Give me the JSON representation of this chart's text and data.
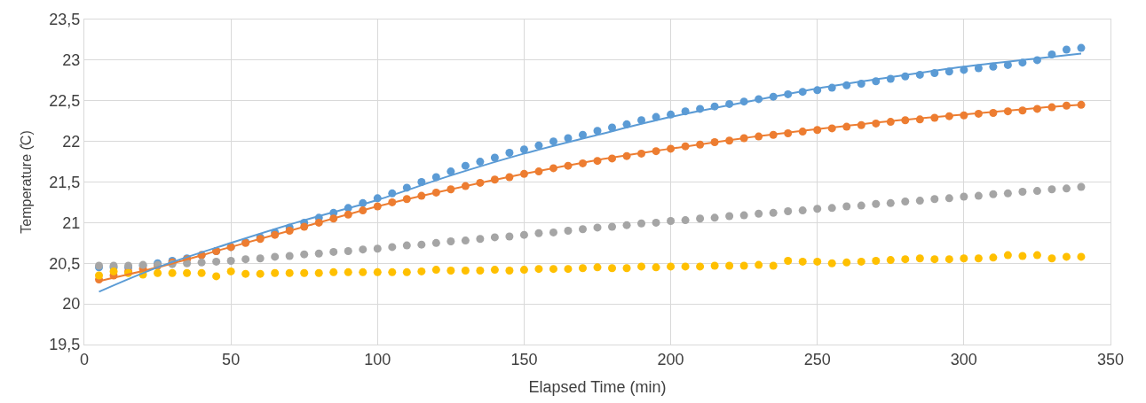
{
  "chart_data": {
    "type": "scatter",
    "xlabel": "Elapsed Time (min)",
    "ylabel": "Temperature (̊C)",
    "x": [
      5,
      10,
      15,
      20,
      25,
      30,
      35,
      40,
      45,
      50,
      55,
      60,
      65,
      70,
      75,
      80,
      85,
      90,
      95,
      100,
      105,
      110,
      115,
      120,
      125,
      130,
      135,
      140,
      145,
      150,
      155,
      160,
      165,
      170,
      175,
      180,
      185,
      190,
      195,
      200,
      205,
      210,
      215,
      220,
      225,
      230,
      235,
      240,
      245,
      250,
      255,
      260,
      265,
      270,
      275,
      280,
      285,
      290,
      295,
      300,
      305,
      310,
      315,
      320,
      325,
      330,
      335,
      340
    ],
    "series": [
      {
        "marker": "circle",
        "color": "#5b9bd5",
        "values": [
          20.45,
          20.45,
          20.45,
          20.47,
          20.5,
          20.53,
          20.56,
          20.6,
          20.65,
          20.7,
          20.76,
          20.82,
          20.88,
          20.94,
          21.0,
          21.06,
          21.12,
          21.18,
          21.24,
          21.3,
          21.36,
          21.43,
          21.5,
          21.56,
          21.63,
          21.7,
          21.75,
          21.8,
          21.86,
          21.9,
          21.95,
          22.0,
          22.04,
          22.08,
          22.13,
          22.17,
          22.21,
          22.26,
          22.3,
          22.33,
          22.37,
          22.4,
          22.43,
          22.46,
          22.49,
          22.52,
          22.55,
          22.58,
          22.61,
          22.63,
          22.66,
          22.69,
          22.71,
          22.74,
          22.77,
          22.8,
          22.82,
          22.84,
          22.86,
          22.88,
          22.9,
          22.92,
          22.94,
          22.97,
          23.0,
          23.07,
          23.13,
          23.15
        ]
      },
      {
        "marker": "circle",
        "color": "#ed7d31",
        "values": [
          20.3,
          20.35,
          20.4,
          20.43,
          20.47,
          20.51,
          20.55,
          20.6,
          20.65,
          20.7,
          20.75,
          20.8,
          20.85,
          20.9,
          20.95,
          21.0,
          21.05,
          21.1,
          21.15,
          21.2,
          21.25,
          21.29,
          21.33,
          21.37,
          21.41,
          21.45,
          21.49,
          21.53,
          21.56,
          21.6,
          21.63,
          21.67,
          21.7,
          21.73,
          21.76,
          21.79,
          21.82,
          21.85,
          21.88,
          21.91,
          21.94,
          21.96,
          21.99,
          22.01,
          22.04,
          22.06,
          22.08,
          22.1,
          22.12,
          22.14,
          22.16,
          22.18,
          22.2,
          22.22,
          22.24,
          22.26,
          22.27,
          22.29,
          22.31,
          22.32,
          22.34,
          22.35,
          22.37,
          22.38,
          22.4,
          22.42,
          22.44,
          22.45
        ]
      },
      {
        "marker": "circle",
        "color": "#a5a5a5",
        "values": [
          20.47,
          20.47,
          20.47,
          20.48,
          20.48,
          20.49,
          20.5,
          20.51,
          20.52,
          20.53,
          20.55,
          20.56,
          20.58,
          20.59,
          20.61,
          20.62,
          20.64,
          20.65,
          20.67,
          20.68,
          20.7,
          20.72,
          20.73,
          20.75,
          20.77,
          20.78,
          20.8,
          20.82,
          20.83,
          20.85,
          20.87,
          20.88,
          20.9,
          20.92,
          20.94,
          20.95,
          20.97,
          20.99,
          21.0,
          21.02,
          21.03,
          21.05,
          21.06,
          21.08,
          21.09,
          21.11,
          21.12,
          21.14,
          21.15,
          21.17,
          21.18,
          21.2,
          21.21,
          21.23,
          21.24,
          21.26,
          21.27,
          21.29,
          21.3,
          21.32,
          21.33,
          21.35,
          21.36,
          21.38,
          21.39,
          21.41,
          21.42,
          21.44
        ]
      },
      {
        "marker": "circle",
        "color": "#ffc000",
        "values": [
          20.35,
          20.4,
          20.38,
          20.36,
          20.38,
          20.38,
          20.38,
          20.38,
          20.34,
          20.4,
          20.37,
          20.37,
          20.38,
          20.38,
          20.38,
          20.38,
          20.39,
          20.39,
          20.39,
          20.39,
          20.39,
          20.39,
          20.4,
          20.42,
          20.41,
          20.41,
          20.41,
          20.42,
          20.41,
          20.42,
          20.43,
          20.43,
          20.43,
          20.44,
          20.45,
          20.44,
          20.44,
          20.46,
          20.45,
          20.46,
          20.46,
          20.46,
          20.47,
          20.47,
          20.47,
          20.48,
          20.47,
          20.53,
          20.52,
          20.52,
          20.5,
          20.51,
          20.52,
          20.53,
          20.54,
          20.55,
          20.56,
          20.55,
          20.55,
          20.56,
          20.56,
          20.57,
          20.6,
          20.59,
          20.6,
          20.56,
          20.58,
          20.58
        ]
      },
      {
        "type": "line",
        "marker": "none",
        "color": "#ed7d31",
        "x": [
          5,
          25,
          50,
          75,
          100,
          125,
          150,
          175,
          200,
          225,
          250,
          275,
          300,
          325,
          340
        ],
        "values": [
          20.28,
          20.45,
          20.7,
          20.95,
          21.2,
          21.41,
          21.6,
          21.77,
          21.91,
          22.04,
          22.15,
          22.25,
          22.33,
          22.41,
          22.45
        ]
      },
      {
        "type": "line",
        "marker": "none",
        "color": "#5b9bd5",
        "x": [
          5,
          25,
          50,
          75,
          100,
          125,
          150,
          175,
          200,
          225,
          250,
          275,
          300,
          325,
          340
        ],
        "values": [
          20.15,
          20.45,
          20.75,
          21.03,
          21.28,
          21.58,
          21.85,
          22.08,
          22.3,
          22.48,
          22.65,
          22.79,
          22.92,
          23.02,
          23.08
        ]
      }
    ],
    "xlim": [
      0,
      350
    ],
    "xticks": [
      0,
      50,
      100,
      150,
      200,
      250,
      300,
      350
    ],
    "ylim": [
      19.5,
      23.5
    ],
    "yticks": [
      {
        "value": 19.5,
        "label": "19,5"
      },
      20,
      {
        "value": 20.5,
        "label": "20,5"
      },
      21,
      {
        "value": 21.5,
        "label": "21,5"
      },
      22,
      {
        "value": 22.5,
        "label": "22,5"
      },
      23,
      {
        "value": 23.5,
        "label": "23,5"
      }
    ],
    "grid": true
  }
}
